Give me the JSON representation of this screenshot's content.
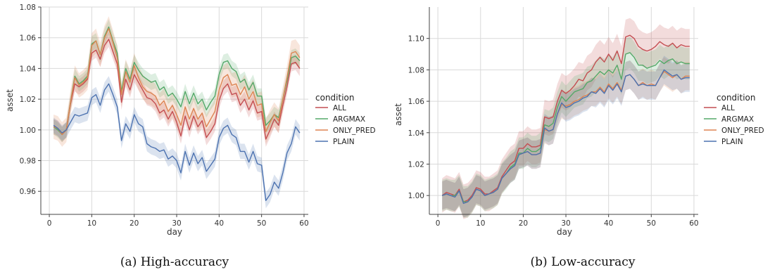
{
  "chart_data": [
    {
      "type": "line",
      "caption": "(a) High-accuracy",
      "xlabel": "day",
      "ylabel": "asset",
      "xlim": [
        -2,
        61
      ],
      "ylim": [
        0.945,
        1.08
      ],
      "xticks": [
        0,
        10,
        20,
        30,
        40,
        50,
        60
      ],
      "yticks": [
        0.96,
        0.98,
        1.0,
        1.02,
        1.04,
        1.06,
        1.08
      ],
      "ytick_labels": [
        "0.96",
        "0.98",
        "1.00",
        "1.02",
        "1.04",
        "1.06",
        "1.08"
      ],
      "grid": true,
      "legend": {
        "title": "condition",
        "placement": "right"
      },
      "x": [
        1,
        2,
        3,
        4,
        5,
        6,
        7,
        8,
        9,
        10,
        11,
        12,
        13,
        14,
        15,
        16,
        17,
        18,
        19,
        20,
        21,
        22,
        23,
        24,
        25,
        26,
        27,
        28,
        29,
        30,
        31,
        32,
        33,
        34,
        35,
        36,
        37,
        38,
        39,
        40,
        41,
        42,
        43,
        44,
        45,
        46,
        47,
        48,
        49,
        50,
        51,
        52,
        53,
        54,
        55,
        56,
        57,
        58,
        59
      ],
      "series": [
        {
          "name": "ALL",
          "color": "#c44e52",
          "band": 0.005,
          "values": [
            1.002,
            1.001,
            0.997,
            1.0,
            1.017,
            1.03,
            1.028,
            1.03,
            1.033,
            1.05,
            1.052,
            1.046,
            1.055,
            1.059,
            1.051,
            1.043,
            1.018,
            1.033,
            1.026,
            1.036,
            1.031,
            1.026,
            1.021,
            1.02,
            1.017,
            1.011,
            1.013,
            1.007,
            1.012,
            1.005,
            0.996,
            1.009,
            1.0,
            1.009,
            1.002,
            1.006,
            0.995,
            0.999,
            1.004,
            1.019,
            1.027,
            1.03,
            1.023,
            1.024,
            1.016,
            1.02,
            1.013,
            1.019,
            1.011,
            1.012,
            0.994,
            1.0,
            1.007,
            1.003,
            1.016,
            1.028,
            1.043,
            1.044,
            1.04
          ]
        },
        {
          "name": "ARGMAX",
          "color": "#55a868",
          "band": 0.005,
          "values": [
            1.002,
            1.0,
            0.997,
            1.0,
            1.018,
            1.035,
            1.03,
            1.032,
            1.035,
            1.056,
            1.058,
            1.049,
            1.061,
            1.067,
            1.058,
            1.05,
            1.025,
            1.04,
            1.033,
            1.044,
            1.039,
            1.035,
            1.033,
            1.031,
            1.032,
            1.026,
            1.028,
            1.022,
            1.024,
            1.02,
            1.015,
            1.025,
            1.017,
            1.024,
            1.017,
            1.02,
            1.013,
            1.018,
            1.022,
            1.036,
            1.044,
            1.045,
            1.04,
            1.038,
            1.031,
            1.033,
            1.026,
            1.031,
            1.022,
            1.022,
            1.003,
            1.006,
            1.01,
            1.008,
            1.02,
            1.032,
            1.047,
            1.048,
            1.045
          ]
        },
        {
          "name": "ONLY_PRED",
          "color": "#dd8452",
          "band": 0.008,
          "values": [
            1.002,
            1.001,
            0.997,
            1.0,
            1.018,
            1.034,
            1.029,
            1.031,
            1.034,
            1.055,
            1.058,
            1.049,
            1.06,
            1.066,
            1.057,
            1.047,
            1.023,
            1.038,
            1.031,
            1.042,
            1.034,
            1.028,
            1.025,
            1.024,
            1.022,
            1.016,
            1.019,
            1.012,
            1.016,
            1.01,
            1.003,
            1.015,
            1.007,
            1.014,
            1.007,
            1.011,
            1.002,
            1.007,
            1.012,
            1.026,
            1.034,
            1.036,
            1.029,
            1.03,
            1.023,
            1.028,
            1.02,
            1.025,
            1.016,
            1.017,
            0.999,
            1.005,
            1.01,
            1.006,
            1.02,
            1.034,
            1.05,
            1.051,
            1.047
          ]
        },
        {
          "name": "PLAIN",
          "color": "#4c72b0",
          "band": 0.005,
          "values": [
            1.003,
            1.001,
            0.998,
            1.0,
            1.005,
            1.01,
            1.009,
            1.01,
            1.011,
            1.021,
            1.023,
            1.016,
            1.026,
            1.03,
            1.023,
            1.015,
            0.993,
            1.004,
            0.999,
            1.01,
            1.004,
            1.002,
            0.991,
            0.989,
            0.988,
            0.986,
            0.987,
            0.981,
            0.983,
            0.98,
            0.972,
            0.986,
            0.977,
            0.985,
            0.978,
            0.982,
            0.973,
            0.977,
            0.981,
            0.995,
            1.001,
            1.003,
            0.997,
            0.995,
            0.986,
            0.986,
            0.979,
            0.986,
            0.978,
            0.977,
            0.954,
            0.958,
            0.966,
            0.962,
            0.972,
            0.985,
            0.991,
            1.002,
            0.998
          ]
        }
      ]
    },
    {
      "type": "line",
      "caption": "(b) Low-accuracy",
      "xlabel": "day",
      "ylabel": "asset",
      "xlim": [
        -2,
        61
      ],
      "ylim": [
        0.988,
        1.12
      ],
      "xticks": [
        0,
        10,
        20,
        30,
        40,
        50,
        60
      ],
      "yticks": [
        1.0,
        1.02,
        1.04,
        1.06,
        1.08,
        1.1
      ],
      "ytick_labels": [
        "1.00",
        "1.02",
        "1.04",
        "1.06",
        "1.08",
        "1.10"
      ],
      "grid": true,
      "legend": {
        "title": "condition",
        "placement": "right"
      },
      "x": [
        1,
        2,
        3,
        4,
        5,
        6,
        7,
        8,
        9,
        10,
        11,
        12,
        13,
        14,
        15,
        16,
        17,
        18,
        19,
        20,
        21,
        22,
        23,
        24,
        25,
        26,
        27,
        28,
        29,
        30,
        31,
        32,
        33,
        34,
        35,
        36,
        37,
        38,
        39,
        40,
        41,
        42,
        43,
        44,
        45,
        46,
        47,
        48,
        49,
        50,
        51,
        52,
        53,
        54,
        55,
        56,
        57,
        58,
        59
      ],
      "series": [
        {
          "name": "ALL",
          "color": "#c44e52",
          "band": 0.011,
          "values": [
            1.0,
            1.002,
            1.001,
            1.0,
            1.004,
            0.996,
            0.997,
            1.0,
            1.005,
            1.004,
            1.001,
            1.001,
            1.003,
            1.005,
            1.012,
            1.016,
            1.02,
            1.022,
            1.03,
            1.03,
            1.033,
            1.031,
            1.031,
            1.032,
            1.05,
            1.049,
            1.05,
            1.06,
            1.067,
            1.065,
            1.067,
            1.07,
            1.074,
            1.073,
            1.078,
            1.08,
            1.085,
            1.088,
            1.085,
            1.09,
            1.086,
            1.092,
            1.084,
            1.101,
            1.102,
            1.1,
            1.095,
            1.093,
            1.092,
            1.093,
            1.095,
            1.098,
            1.096,
            1.095,
            1.097,
            1.094,
            1.096,
            1.095,
            1.095
          ]
        },
        {
          "name": "ARGMAX",
          "color": "#55a868",
          "band": 0.01,
          "values": [
            1.0,
            1.001,
            1.0,
            1.0,
            1.003,
            0.996,
            0.996,
            0.999,
            1.004,
            1.003,
            1.0,
            1.001,
            1.002,
            1.004,
            1.011,
            1.014,
            1.018,
            1.02,
            1.027,
            1.027,
            1.03,
            1.028,
            1.028,
            1.03,
            1.045,
            1.044,
            1.046,
            1.056,
            1.063,
            1.06,
            1.063,
            1.066,
            1.067,
            1.068,
            1.072,
            1.073,
            1.076,
            1.079,
            1.077,
            1.08,
            1.078,
            1.083,
            1.074,
            1.09,
            1.091,
            1.088,
            1.083,
            1.083,
            1.081,
            1.082,
            1.083,
            1.086,
            1.084,
            1.086,
            1.087,
            1.084,
            1.085,
            1.084,
            1.084
          ]
        },
        {
          "name": "ONLY_PRED",
          "color": "#dd8452",
          "band": 0.009,
          "values": [
            1.0,
            1.001,
            1.0,
            0.999,
            1.003,
            0.995,
            0.996,
            0.999,
            1.004,
            1.003,
            1.0,
            1.001,
            1.002,
            1.004,
            1.011,
            1.014,
            1.017,
            1.019,
            1.026,
            1.027,
            1.028,
            1.026,
            1.026,
            1.027,
            1.042,
            1.041,
            1.042,
            1.052,
            1.058,
            1.057,
            1.058,
            1.06,
            1.061,
            1.063,
            1.064,
            1.066,
            1.066,
            1.069,
            1.066,
            1.071,
            1.068,
            1.072,
            1.067,
            1.076,
            1.077,
            1.074,
            1.07,
            1.072,
            1.07,
            1.071,
            1.07,
            1.075,
            1.079,
            1.077,
            1.075,
            1.077,
            1.074,
            1.076,
            1.076
          ]
        },
        {
          "name": "PLAIN",
          "color": "#4c72b0",
          "band": 0.009,
          "values": [
            1.0,
            1.001,
            1.0,
            0.999,
            1.003,
            0.995,
            0.996,
            0.999,
            1.004,
            1.003,
            1.0,
            1.001,
            1.002,
            1.004,
            1.011,
            1.014,
            1.017,
            1.019,
            1.026,
            1.027,
            1.028,
            1.026,
            1.026,
            1.027,
            1.043,
            1.041,
            1.042,
            1.052,
            1.059,
            1.056,
            1.057,
            1.059,
            1.06,
            1.062,
            1.063,
            1.066,
            1.065,
            1.068,
            1.065,
            1.07,
            1.067,
            1.071,
            1.066,
            1.076,
            1.077,
            1.074,
            1.07,
            1.071,
            1.07,
            1.07,
            1.07,
            1.075,
            1.08,
            1.078,
            1.076,
            1.077,
            1.074,
            1.075,
            1.075
          ]
        }
      ]
    }
  ]
}
